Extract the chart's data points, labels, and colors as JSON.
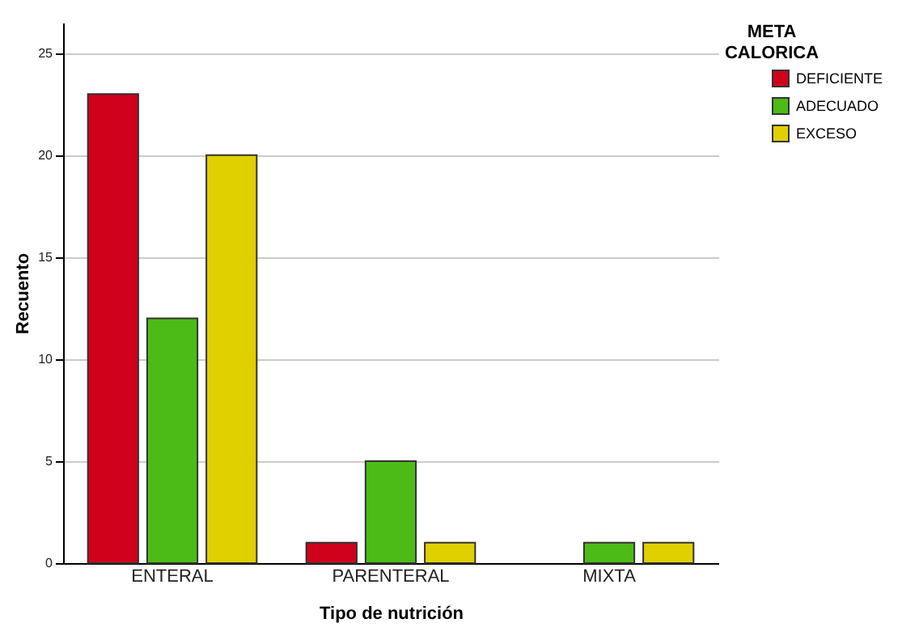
{
  "chart_data": {
    "type": "bar",
    "xlabel": "Tipo de nutrición",
    "ylabel": "Recuento",
    "legend_title": "META CALORICA",
    "categories": [
      "ENTERAL",
      "PARENTERAL",
      "MIXTA"
    ],
    "series": [
      {
        "name": "DEFICIENTE",
        "color": "#d0021b",
        "values": [
          23,
          1,
          0
        ]
      },
      {
        "name": "ADECUADO",
        "color": "#4cbb17",
        "values": [
          12,
          5,
          1
        ]
      },
      {
        "name": "EXCESO",
        "color": "#e0d000",
        "values": [
          20,
          1,
          1
        ]
      }
    ],
    "ylim": [
      0,
      26.5
    ],
    "yticks": [
      0,
      5,
      10,
      15,
      20,
      25
    ],
    "grid": "y",
    "legend": "top right"
  }
}
